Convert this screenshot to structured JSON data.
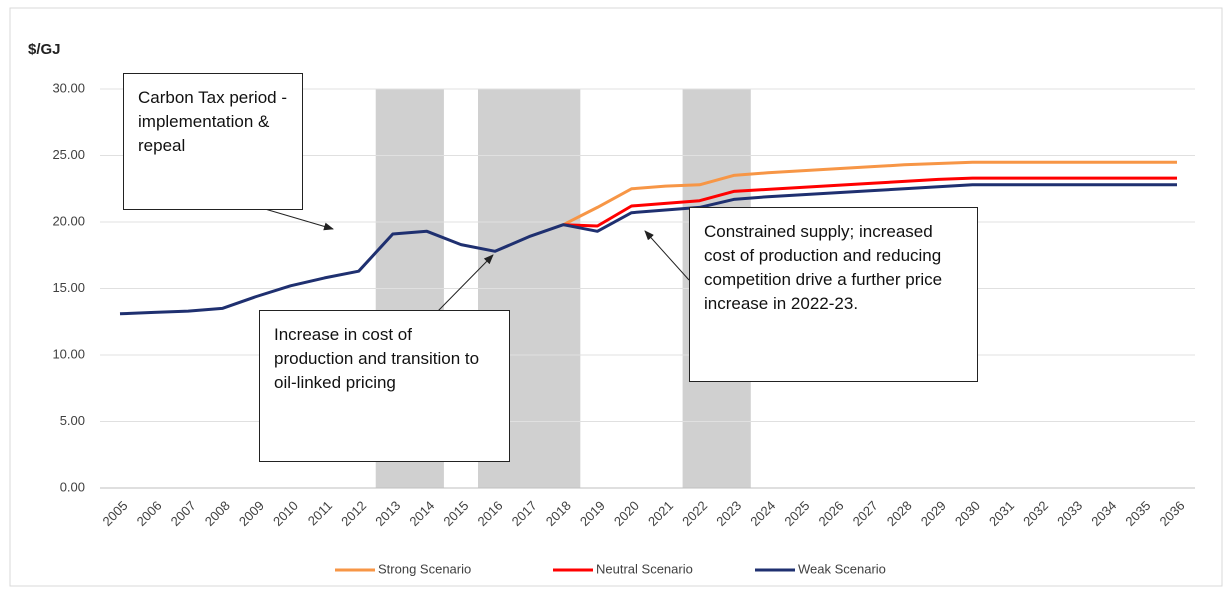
{
  "chart_data": {
    "type": "line",
    "y_label": "$/GJ",
    "categories": [
      "2005",
      "2006",
      "2007",
      "2008",
      "2009",
      "2010",
      "2011",
      "2012",
      "2013",
      "2014",
      "2015",
      "2016",
      "2017",
      "2018",
      "2019",
      "2020",
      "2021",
      "2022",
      "2023",
      "2024",
      "2025",
      "2026",
      "2027",
      "2028",
      "2029",
      "2030",
      "2031",
      "2032",
      "2033",
      "2034",
      "2035",
      "2036"
    ],
    "series": [
      {
        "name": "Strong Scenario",
        "color": "#f79646",
        "values": [
          null,
          null,
          null,
          null,
          null,
          null,
          null,
          null,
          null,
          null,
          null,
          null,
          null,
          19.8,
          21.1,
          22.5,
          22.7,
          22.8,
          23.5,
          23.7,
          23.85,
          24.0,
          24.15,
          24.3,
          24.4,
          24.5,
          24.5,
          24.5,
          24.5,
          24.5,
          24.5,
          24.5
        ]
      },
      {
        "name": "Neutral Scenario",
        "color": "#ff0000",
        "values": [
          null,
          null,
          null,
          null,
          null,
          null,
          null,
          null,
          null,
          null,
          null,
          null,
          null,
          19.8,
          19.7,
          21.2,
          21.4,
          21.6,
          22.3,
          22.45,
          22.6,
          22.75,
          22.9,
          23.05,
          23.2,
          23.3,
          23.3,
          23.3,
          23.3,
          23.3,
          23.3,
          23.3
        ]
      },
      {
        "name": "Weak Scenario",
        "color": "#1f3070",
        "values": [
          13.1,
          13.2,
          13.3,
          13.5,
          14.4,
          15.2,
          15.8,
          16.3,
          19.1,
          19.3,
          18.3,
          17.8,
          18.9,
          19.8,
          19.3,
          20.7,
          20.9,
          21.1,
          21.7,
          21.9,
          22.05,
          22.2,
          22.35,
          22.5,
          22.65,
          22.8,
          22.8,
          22.8,
          22.8,
          22.8,
          22.8,
          22.8
        ]
      }
    ],
    "highlight_periods": [
      [
        "2013",
        "2014"
      ],
      [
        "2016",
        "2018"
      ],
      [
        "2022",
        "2023"
      ]
    ],
    "annotations": [
      "Carbon Tax period - implementation & repeal",
      "Increase in cost of production and transition to oil-linked pricing",
      "Constrained supply; increased cost of production and reducing competition drive a further price increase in 2022-23."
    ],
    "ylim": [
      0,
      30
    ],
    "yticks": [
      {
        "value": 0,
        "label": "0.00"
      },
      {
        "value": 5,
        "label": "5.00"
      },
      {
        "value": 10,
        "label": "10.00"
      },
      {
        "value": 15,
        "label": "15.00"
      },
      {
        "value": 20,
        "label": "20.00"
      },
      {
        "value": 25,
        "label": "25.00"
      },
      {
        "value": 30,
        "label": "30.00"
      }
    ],
    "grid": true,
    "legend": "bottom"
  }
}
